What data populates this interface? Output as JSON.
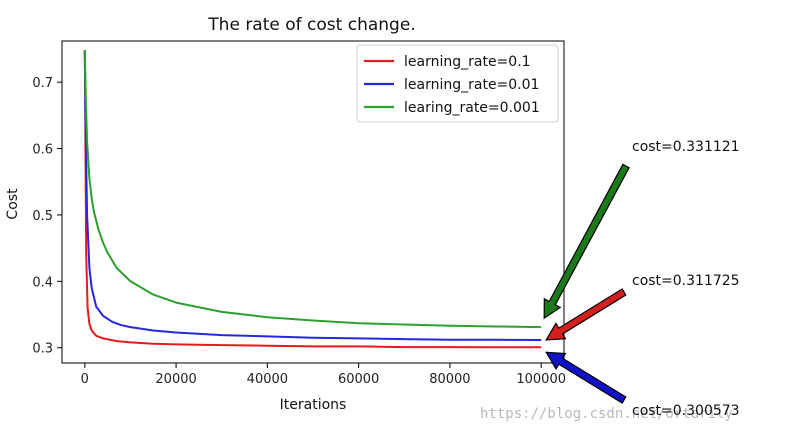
{
  "chart_data": {
    "type": "line",
    "title": "The rate of cost change.",
    "xlabel": "Iterations",
    "ylabel": "Cost",
    "xlim": [
      -5000,
      105000
    ],
    "ylim": [
      0.277,
      0.762
    ],
    "xticks": [
      0,
      20000,
      40000,
      60000,
      80000,
      100000
    ],
    "yticks": [
      0.3,
      0.4,
      0.5,
      0.6,
      0.7
    ],
    "xtick_labels": [
      "0",
      "20000",
      "40000",
      "60000",
      "80000",
      "100000"
    ],
    "ytick_labels": [
      "0.3",
      "0.4",
      "0.5",
      "0.6",
      "0.7"
    ],
    "legend_position": "top-right",
    "grid": false,
    "series": [
      {
        "name": "learning_rate=0.1",
        "color": "#e41a1c",
        "x": [
          0,
          300,
          600,
          1000,
          1500,
          2500,
          4000,
          7000,
          10000,
          15000,
          20000,
          30000,
          40000,
          50000,
          60000,
          70000,
          80000,
          90000,
          100000
        ],
        "y": [
          0.748,
          0.44,
          0.36,
          0.336,
          0.326,
          0.318,
          0.314,
          0.31,
          0.308,
          0.306,
          0.305,
          0.304,
          0.303,
          0.302,
          0.302,
          0.301,
          0.301,
          0.3006,
          0.3006
        ]
      },
      {
        "name": "learning_rate=0.01",
        "color": "#2626e0",
        "x": [
          0,
          200,
          500,
          1000,
          1500,
          2500,
          4000,
          6000,
          8000,
          10000,
          15000,
          20000,
          30000,
          40000,
          50000,
          60000,
          70000,
          80000,
          90000,
          100000
        ],
        "y": [
          0.748,
          0.62,
          0.5,
          0.42,
          0.39,
          0.362,
          0.348,
          0.339,
          0.334,
          0.331,
          0.326,
          0.323,
          0.319,
          0.317,
          0.315,
          0.314,
          0.313,
          0.312,
          0.312,
          0.3117
        ]
      },
      {
        "name": "learing_rate=0.001",
        "color": "#2ca02c",
        "x": [
          0,
          200,
          500,
          1000,
          1500,
          2000,
          3000,
          4000,
          5000,
          7000,
          10000,
          15000,
          20000,
          30000,
          40000,
          50000,
          60000,
          70000,
          80000,
          90000,
          100000
        ],
        "y": [
          0.748,
          0.68,
          0.61,
          0.555,
          0.525,
          0.505,
          0.478,
          0.458,
          0.443,
          0.42,
          0.4,
          0.38,
          0.368,
          0.354,
          0.346,
          0.341,
          0.337,
          0.335,
          0.333,
          0.332,
          0.3311
        ]
      }
    ],
    "annotations": [
      {
        "text": "cost=0.331121",
        "color": "#1a7a1a",
        "target_x": 100000,
        "target_y": 0.3311
      },
      {
        "text": "cost=0.311725",
        "color": "#d41f1f",
        "target_x": 100000,
        "target_y": 0.3117
      },
      {
        "text": "cost=0.300573",
        "color": "#1212c8",
        "target_x": 100000,
        "target_y": 0.3006
      }
    ]
  },
  "watermark": "https://blog.csdn.net/ortarily"
}
